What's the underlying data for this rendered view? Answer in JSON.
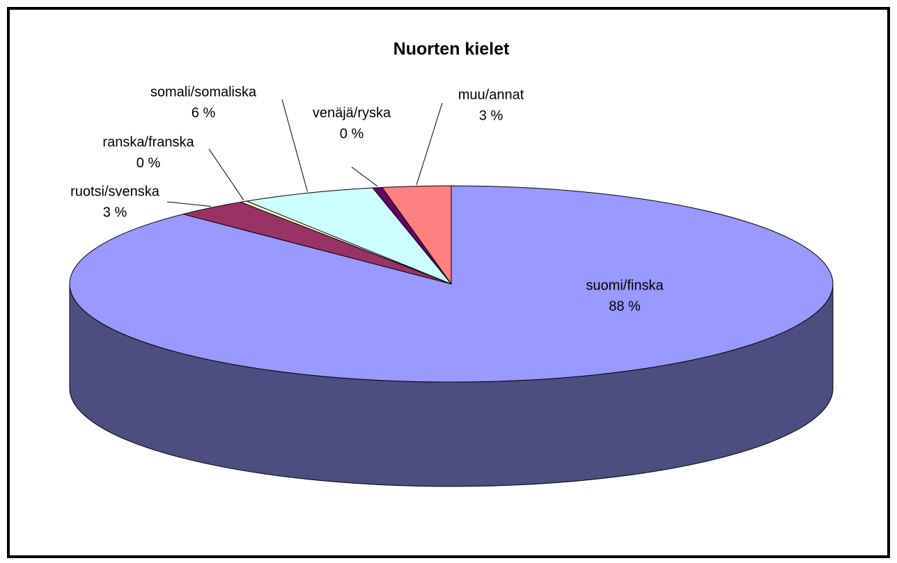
{
  "chart_data": {
    "type": "pie",
    "title": "Nuorten kielet",
    "categories": [
      "suomi/finska",
      "ruotsi/svenska",
      "ranska/franska",
      "somali/somaliska",
      "venäjä/ryska",
      "muu/annat"
    ],
    "values": [
      87.6,
      3.1,
      0.3,
      5.7,
      0.4,
      2.9
    ],
    "value_labels": [
      "88 %",
      "3 %",
      "0 %",
      "6 %",
      "0 %",
      "3 %"
    ],
    "colors": [
      "#9999ff",
      "#993366",
      "#ffffcc",
      "#ccffff",
      "#660066",
      "#ff8080"
    ]
  }
}
